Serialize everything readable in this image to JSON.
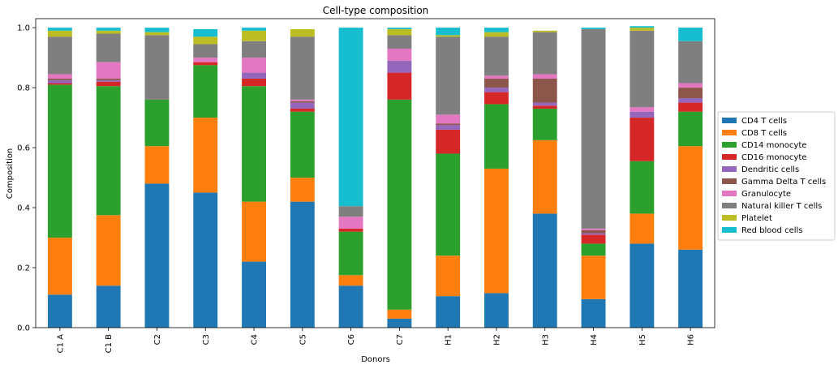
{
  "chart_data": {
    "type": "bar",
    "stacked": true,
    "title": "Cell-type composition",
    "xlabel": "Donors",
    "ylabel": "Composition",
    "ylim": [
      0,
      1.03
    ],
    "yticks": [
      "0.0",
      "0.2",
      "0.4",
      "0.6",
      "0.8",
      "1.0"
    ],
    "grid": false,
    "legend_position": "right",
    "categories": [
      "C1 A",
      "C1 B",
      "C2",
      "C3",
      "C4",
      "C5",
      "C6",
      "C7",
      "H1",
      "H2",
      "H3",
      "H4",
      "H5",
      "H6"
    ],
    "series": [
      {
        "name": "CD4 T cells",
        "color": "#1f77b4",
        "values": [
          0.11,
          0.14,
          0.48,
          0.45,
          0.22,
          0.42,
          0.14,
          0.03,
          0.105,
          0.115,
          0.38,
          0.095,
          0.28,
          0.26
        ]
      },
      {
        "name": "CD8 T cells",
        "color": "#ff7f0e",
        "values": [
          0.19,
          0.235,
          0.125,
          0.25,
          0.2,
          0.08,
          0.035,
          0.03,
          0.135,
          0.415,
          0.245,
          0.145,
          0.1,
          0.345
        ]
      },
      {
        "name": "CD14 monocyte",
        "color": "#2ca02c",
        "values": [
          0.51,
          0.43,
          0.155,
          0.175,
          0.385,
          0.22,
          0.145,
          0.7,
          0.34,
          0.215,
          0.105,
          0.04,
          0.175,
          0.115
        ]
      },
      {
        "name": "CD16 monocyte",
        "color": "#d62728",
        "values": [
          0.005,
          0.015,
          0.0,
          0.01,
          0.025,
          0.01,
          0.01,
          0.09,
          0.08,
          0.04,
          0.01,
          0.03,
          0.145,
          0.03
        ]
      },
      {
        "name": "Dendritic cells",
        "color": "#9467bd",
        "values": [
          0.01,
          0.005,
          0.0,
          0.0,
          0.02,
          0.02,
          0.0,
          0.04,
          0.015,
          0.015,
          0.01,
          0.005,
          0.02,
          0.015
        ]
      },
      {
        "name": "Gamma Delta T cells",
        "color": "#8c564b",
        "values": [
          0.005,
          0.005,
          0.0,
          0.0,
          0.0,
          0.005,
          0.0,
          0.0,
          0.005,
          0.03,
          0.08,
          0.01,
          0.0,
          0.035
        ]
      },
      {
        "name": "Granulocyte",
        "color": "#e377c2",
        "values": [
          0.015,
          0.055,
          0.0,
          0.015,
          0.05,
          0.005,
          0.04,
          0.04,
          0.03,
          0.01,
          0.015,
          0.005,
          0.015,
          0.015
        ]
      },
      {
        "name": "Natural killer T cells",
        "color": "#7f7f7f",
        "values": [
          0.125,
          0.095,
          0.215,
          0.045,
          0.055,
          0.21,
          0.035,
          0.045,
          0.26,
          0.13,
          0.14,
          0.665,
          0.255,
          0.14
        ]
      },
      {
        "name": "Platelet",
        "color": "#bcbd22",
        "values": [
          0.02,
          0.01,
          0.01,
          0.025,
          0.035,
          0.025,
          0.0,
          0.02,
          0.005,
          0.015,
          0.005,
          0.0,
          0.01,
          0.0
        ]
      },
      {
        "name": "Red blood cells",
        "color": "#17becf",
        "values": [
          0.01,
          0.01,
          0.015,
          0.025,
          0.01,
          0.0,
          0.595,
          0.005,
          0.025,
          0.015,
          0.0,
          0.005,
          0.005,
          0.045
        ]
      }
    ]
  }
}
